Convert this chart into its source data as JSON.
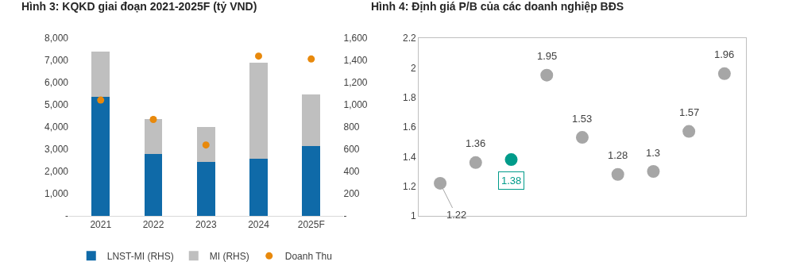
{
  "chart_data": [
    {
      "type": "bar",
      "title": "Hình 3: KQKD giai đoạn 2021-2025F (tỷ VND)",
      "categories": [
        "2021",
        "2022",
        "2023",
        "2024",
        "2025F"
      ],
      "stacked": true,
      "series": [
        {
          "name": "LNST-MI (RHS)",
          "color": "#0f6aa8",
          "axis": "y2",
          "values": [
            1070,
            556,
            485,
            516,
            632
          ]
        },
        {
          "name": "MI (RHS)",
          "color": "#bfbfbf",
          "axis": "y2",
          "values": [
            408,
            313,
            315,
            863,
            458
          ]
        },
        {
          "name": "Doanh Thu",
          "type": "scatter",
          "color": "#e8890c",
          "values": [
            5210,
            4340,
            3190,
            7190,
            7060
          ]
        }
      ],
      "ylim": [
        0,
        8000
      ],
      "yticks": [
        {
          "value": 0,
          "label": "-"
        },
        {
          "value": 1000,
          "label": "1,000"
        },
        {
          "value": 2000,
          "label": "2,000"
        },
        {
          "value": 3000,
          "label": "3,000"
        },
        {
          "value": 4000,
          "label": "4,000"
        },
        {
          "value": 5000,
          "label": "5,000"
        },
        {
          "value": 6000,
          "label": "6,000"
        },
        {
          "value": 7000,
          "label": "7,000"
        },
        {
          "value": 8000,
          "label": "8,000"
        }
      ],
      "y2lim": [
        0,
        1600
      ],
      "y2ticks": [
        {
          "value": 0,
          "label": "-"
        },
        200,
        400,
        600,
        800,
        {
          "value": 1000,
          "label": "1,000"
        },
        {
          "value": 1200,
          "label": "1,200"
        },
        {
          "value": 1400,
          "label": "1,400"
        },
        {
          "value": 1600,
          "label": "1,600"
        }
      ],
      "marker": "circle",
      "legend": "bottom"
    },
    {
      "type": "scatter",
      "title": "Hình 4: Định giá P/B của các doanh nghiệp BĐS",
      "categories": [
        null,
        null,
        null,
        null,
        null,
        null,
        null,
        null,
        null
      ],
      "values": [
        1.22,
        1.36,
        1.38,
        1.95,
        1.53,
        1.28,
        1.3,
        1.57,
        1.96
      ],
      "colors": [
        "#a6a6a6",
        "#a6a6a6",
        "#009b8a",
        "#a6a6a6",
        "#a6a6a6",
        "#a6a6a6",
        "#a6a6a6",
        "#a6a6a6",
        "#a6a6a6"
      ],
      "value_labels": [
        "1.22",
        "1.36",
        "1.38",
        "1.95",
        "1.53",
        "1.28",
        "1.3",
        "1.57",
        "1.96"
      ],
      "ylim": [
        1,
        2.2
      ],
      "yticks": [
        1,
        1.2,
        1.4,
        1.6,
        1.8,
        2,
        2.2
      ],
      "tick_labels": "y",
      "marker": "circle"
    }
  ]
}
